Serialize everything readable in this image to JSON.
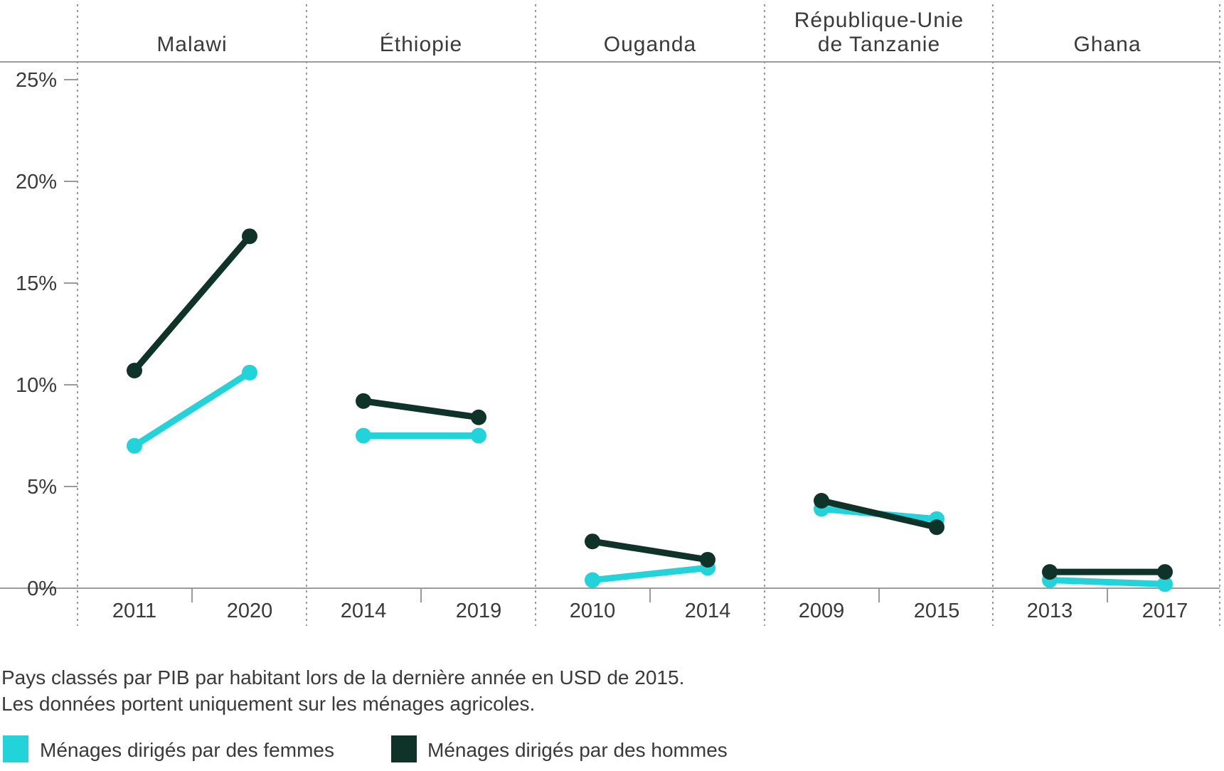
{
  "chart_data": {
    "type": "line",
    "panels": [
      {
        "country": "Malawi",
        "title_lines": [
          "Malawi"
        ],
        "years": [
          "2011",
          "2020"
        ],
        "series": [
          {
            "name": "Ménages dirigés par des femmes",
            "values": [
              7.0,
              10.6
            ]
          },
          {
            "name": "Ménages dirigés par des hommes",
            "values": [
              10.7,
              17.3
            ]
          }
        ]
      },
      {
        "country": "Éthiopie",
        "title_lines": [
          "Éthiopie"
        ],
        "years": [
          "2014",
          "2019"
        ],
        "series": [
          {
            "name": "Ménages dirigés par des femmes",
            "values": [
              7.5,
              7.5
            ]
          },
          {
            "name": "Ménages dirigés par des hommes",
            "values": [
              9.2,
              8.4
            ]
          }
        ]
      },
      {
        "country": "Ouganda",
        "title_lines": [
          "Ouganda"
        ],
        "years": [
          "2010",
          "2014"
        ],
        "series": [
          {
            "name": "Ménages dirigés par des femmes",
            "values": [
              0.4,
              1.0
            ]
          },
          {
            "name": "Ménages dirigés par des hommes",
            "values": [
              2.3,
              1.4
            ]
          }
        ]
      },
      {
        "country": "République-Unie de Tanzanie",
        "title_lines": [
          "République-Unie",
          "de Tanzanie"
        ],
        "years": [
          "2009",
          "2015"
        ],
        "series": [
          {
            "name": "Ménages dirigés par des femmes",
            "values": [
              3.9,
              3.4
            ]
          },
          {
            "name": "Ménages dirigés par des hommes",
            "values": [
              4.3,
              3.0
            ]
          }
        ]
      },
      {
        "country": "Ghana",
        "title_lines": [
          "Ghana"
        ],
        "years": [
          "2013",
          "2017"
        ],
        "series": [
          {
            "name": "Ménages dirigés par des femmes",
            "values": [
              0.4,
              0.2
            ]
          },
          {
            "name": "Ménages dirigés par des hommes",
            "values": [
              0.8,
              0.8
            ]
          }
        ]
      }
    ],
    "y_ticks": [
      "0%",
      "5%",
      "10%",
      "15%",
      "20%",
      "25%"
    ],
    "ylim": [
      0,
      25
    ],
    "legend": [
      {
        "label": "Ménages dirigés par des femmes",
        "color": "#22d3d9"
      },
      {
        "label": "Ménages dirigés par des hommes",
        "color": "#0f3229"
      }
    ],
    "notes": [
      "Pays classés par PIB par habitant lors de la dernière année en USD de 2015.",
      "Les données portent uniquement sur les ménages agricoles."
    ],
    "legend_position": "bottom-left"
  },
  "colors": {
    "female": "#22d3d9",
    "male": "#0f3229",
    "axis": "#9a9a9a",
    "text": "#3a3a3a"
  }
}
